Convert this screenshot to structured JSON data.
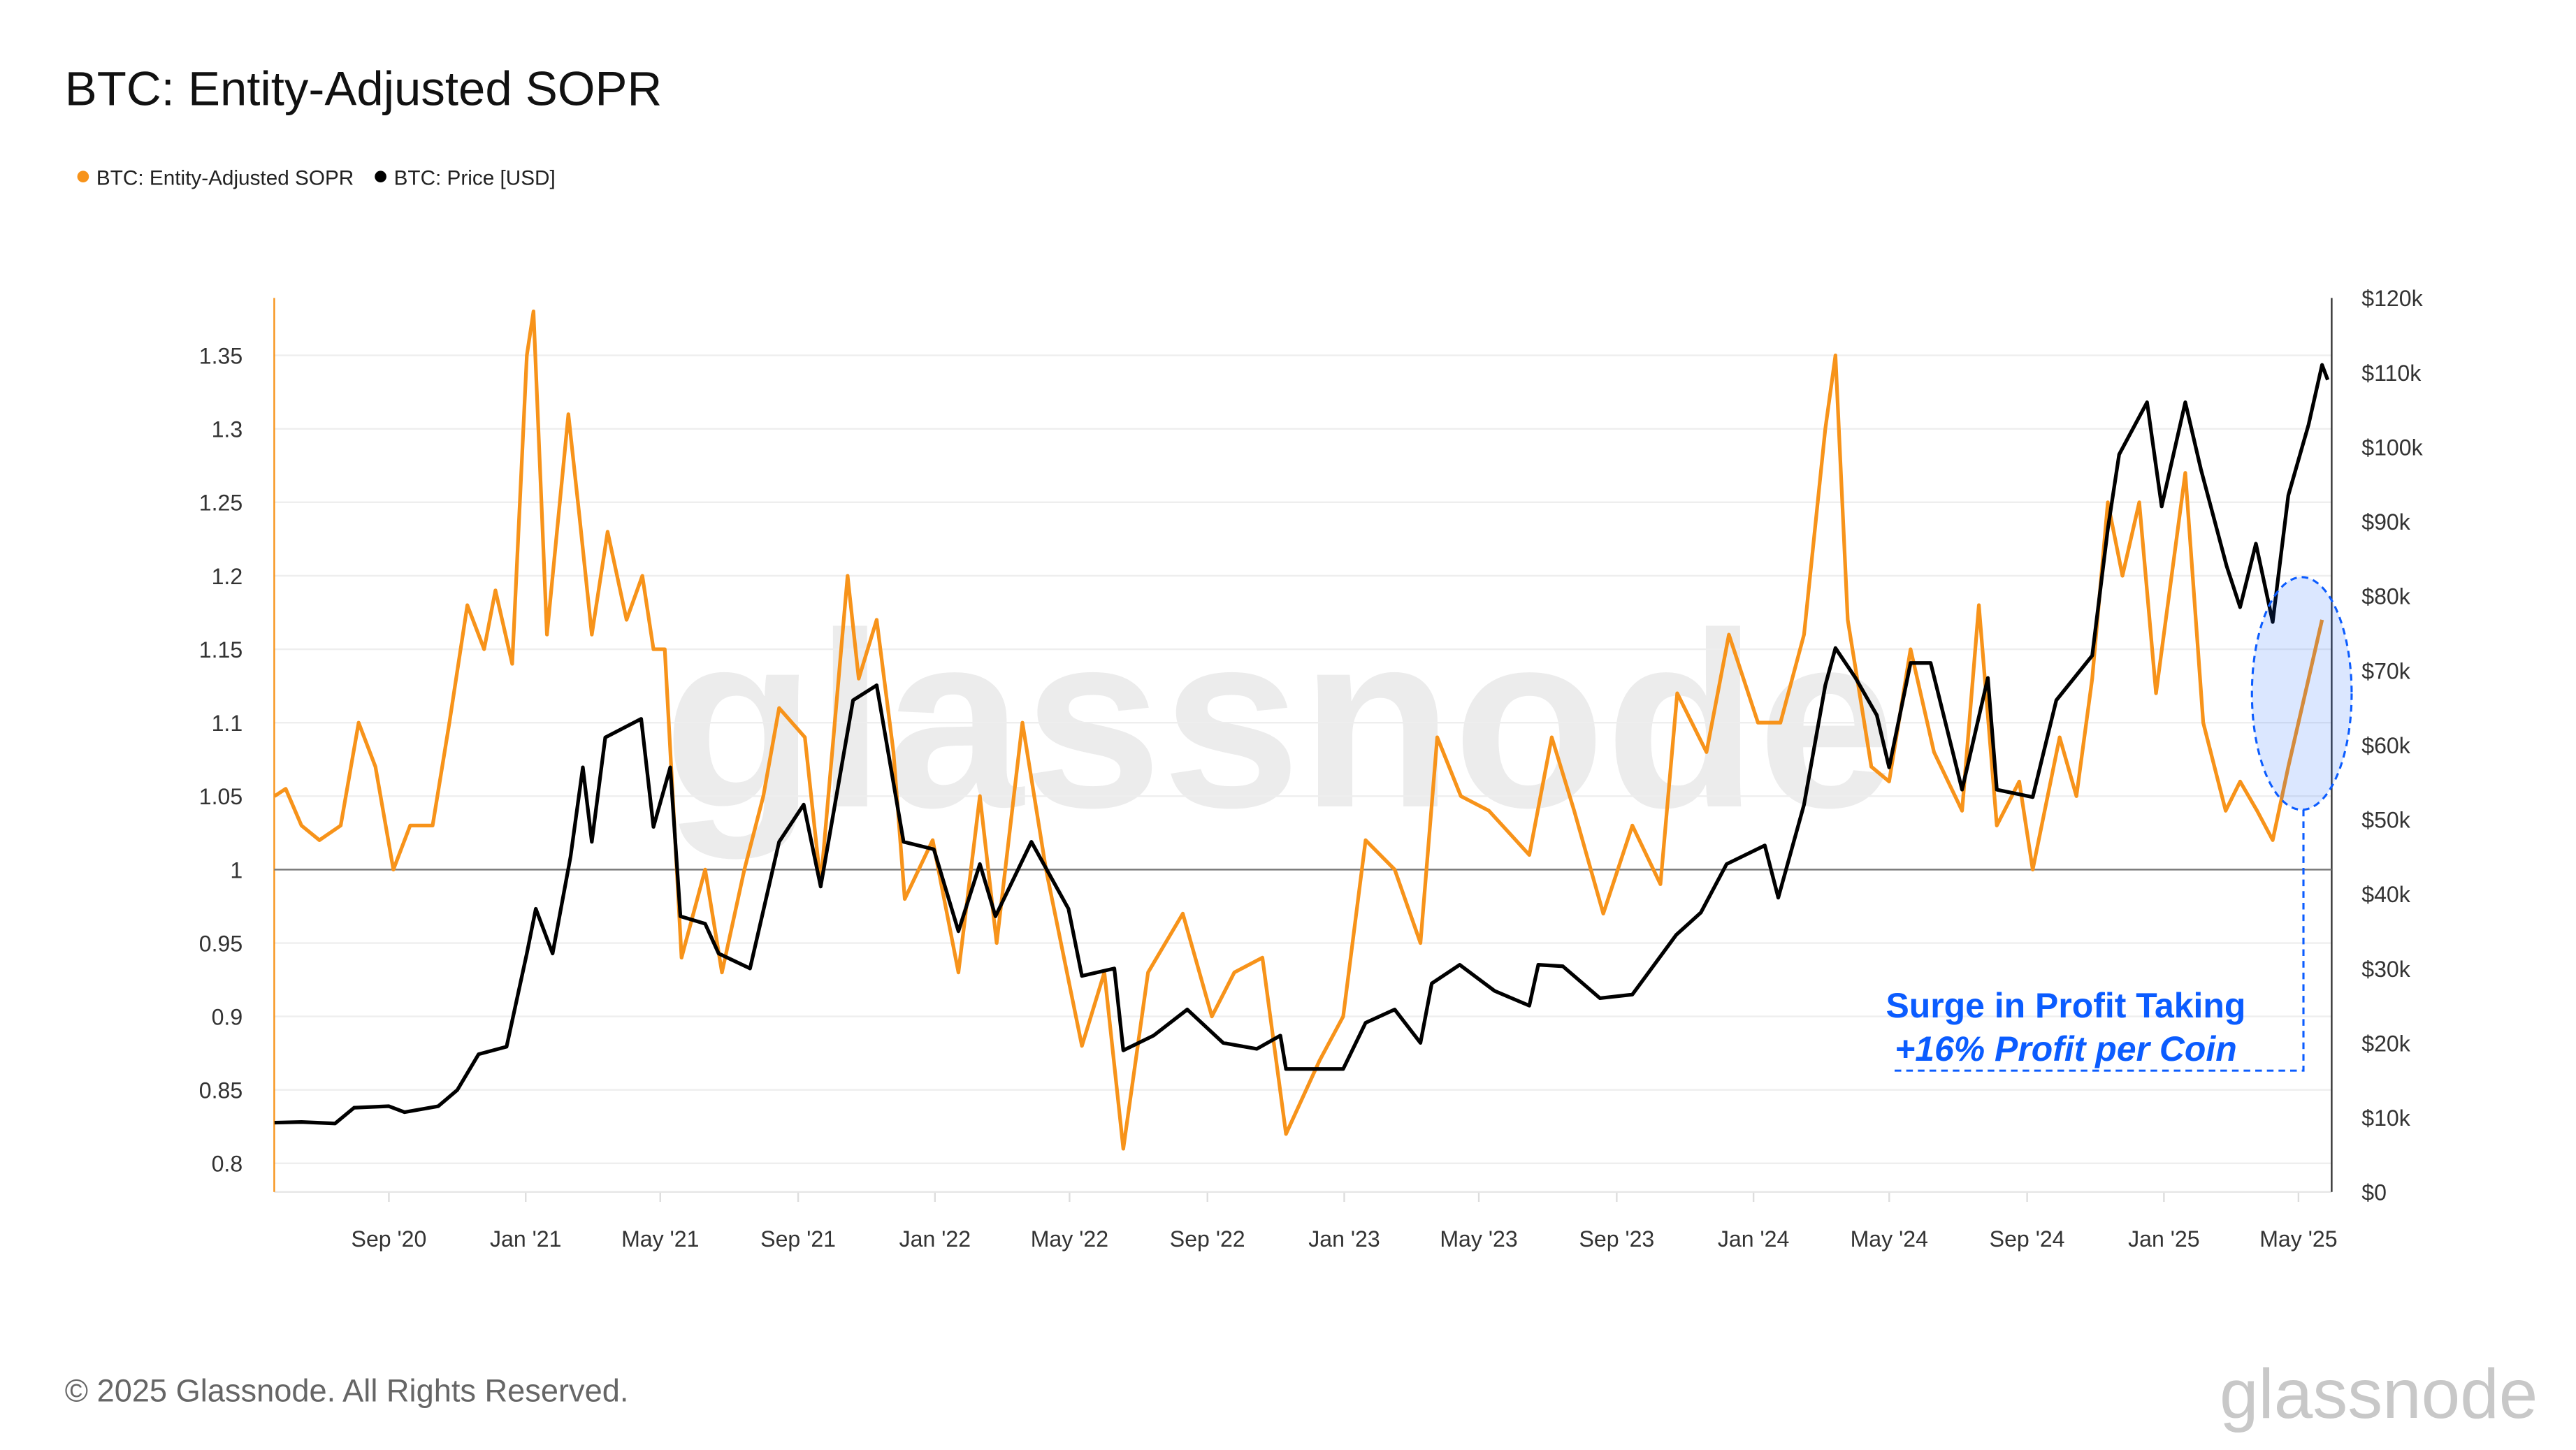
{
  "chart_data": {
    "type": "line",
    "title": "BTC: Entity-Adjusted SOPR",
    "legend_placement": "top-left",
    "grid": true,
    "series": [
      {
        "name": "BTC: Entity-Adjusted SOPR",
        "axis": "left",
        "color": "#f7931a",
        "points": [
          [
            "2020-05-22",
            1.05
          ],
          [
            "2020-06-01",
            1.055
          ],
          [
            "2020-06-15",
            1.03
          ],
          [
            "2020-07-01",
            1.02
          ],
          [
            "2020-07-20",
            1.03
          ],
          [
            "2020-08-05",
            1.1
          ],
          [
            "2020-08-20",
            1.07
          ],
          [
            "2020-09-05",
            1.0
          ],
          [
            "2020-09-20",
            1.03
          ],
          [
            "2020-10-10",
            1.03
          ],
          [
            "2020-10-25",
            1.1
          ],
          [
            "2020-11-10",
            1.18
          ],
          [
            "2020-11-25",
            1.15
          ],
          [
            "2020-12-05",
            1.19
          ],
          [
            "2020-12-20",
            1.14
          ],
          [
            "2021-01-02",
            1.35
          ],
          [
            "2021-01-08",
            1.38
          ],
          [
            "2021-01-20",
            1.16
          ],
          [
            "2021-02-08",
            1.31
          ],
          [
            "2021-02-18",
            1.24
          ],
          [
            "2021-03-01",
            1.16
          ],
          [
            "2021-03-15",
            1.23
          ],
          [
            "2021-04-01",
            1.17
          ],
          [
            "2021-04-15",
            1.2
          ],
          [
            "2021-04-25",
            1.15
          ],
          [
            "2021-05-05",
            1.15
          ],
          [
            "2021-05-20",
            0.94
          ],
          [
            "2021-06-10",
            1.0
          ],
          [
            "2021-06-25",
            0.93
          ],
          [
            "2021-07-15",
            1.0
          ],
          [
            "2021-08-01",
            1.05
          ],
          [
            "2021-08-15",
            1.11
          ],
          [
            "2021-09-07",
            1.09
          ],
          [
            "2021-09-21",
            0.99
          ],
          [
            "2021-10-15",
            1.2
          ],
          [
            "2021-10-25",
            1.13
          ],
          [
            "2021-11-10",
            1.17
          ],
          [
            "2021-11-25",
            1.08
          ],
          [
            "2021-12-05",
            0.98
          ],
          [
            "2021-12-30",
            1.02
          ],
          [
            "2022-01-22",
            0.93
          ],
          [
            "2022-02-10",
            1.05
          ],
          [
            "2022-02-25",
            0.95
          ],
          [
            "2022-03-20",
            1.1
          ],
          [
            "2022-04-10",
            1.0
          ],
          [
            "2022-05-12",
            0.88
          ],
          [
            "2022-06-01",
            0.93
          ],
          [
            "2022-06-18",
            0.81
          ],
          [
            "2022-07-10",
            0.93
          ],
          [
            "2022-08-10",
            0.97
          ],
          [
            "2022-09-05",
            0.9
          ],
          [
            "2022-09-25",
            0.93
          ],
          [
            "2022-10-20",
            0.94
          ],
          [
            "2022-11-10",
            0.82
          ],
          [
            "2022-12-10",
            0.87
          ],
          [
            "2022-12-31",
            0.9
          ],
          [
            "2023-01-20",
            1.02
          ],
          [
            "2023-02-15",
            1.0
          ],
          [
            "2023-03-10",
            0.95
          ],
          [
            "2023-03-25",
            1.09
          ],
          [
            "2023-04-15",
            1.05
          ],
          [
            "2023-05-10",
            1.04
          ],
          [
            "2023-06-15",
            1.01
          ],
          [
            "2023-07-05",
            1.09
          ],
          [
            "2023-07-25",
            1.04
          ],
          [
            "2023-08-20",
            0.97
          ],
          [
            "2023-09-15",
            1.03
          ],
          [
            "2023-10-10",
            0.99
          ],
          [
            "2023-10-25",
            1.12
          ],
          [
            "2023-11-20",
            1.08
          ],
          [
            "2023-12-10",
            1.16
          ],
          [
            "2024-01-05",
            1.1
          ],
          [
            "2024-01-25",
            1.1
          ],
          [
            "2024-02-15",
            1.16
          ],
          [
            "2024-03-05",
            1.3
          ],
          [
            "2024-03-14",
            1.35
          ],
          [
            "2024-03-25",
            1.17
          ],
          [
            "2024-04-15",
            1.07
          ],
          [
            "2024-05-01",
            1.06
          ],
          [
            "2024-05-20",
            1.15
          ],
          [
            "2024-06-10",
            1.08
          ],
          [
            "2024-07-05",
            1.04
          ],
          [
            "2024-07-20",
            1.18
          ],
          [
            "2024-08-05",
            1.03
          ],
          [
            "2024-08-25",
            1.06
          ],
          [
            "2024-09-06",
            1.0
          ],
          [
            "2024-09-30",
            1.09
          ],
          [
            "2024-10-15",
            1.05
          ],
          [
            "2024-10-29",
            1.13
          ],
          [
            "2024-11-12",
            1.25
          ],
          [
            "2024-11-25",
            1.2
          ],
          [
            "2024-12-10",
            1.25
          ],
          [
            "2024-12-25",
            1.12
          ],
          [
            "2025-01-20",
            1.27
          ],
          [
            "2025-02-05",
            1.1
          ],
          [
            "2025-02-25",
            1.04
          ],
          [
            "2025-03-10",
            1.06
          ],
          [
            "2025-03-25",
            1.04
          ],
          [
            "2025-04-08",
            1.02
          ],
          [
            "2025-04-22",
            1.07
          ],
          [
            "2025-05-10",
            1.13
          ],
          [
            "2025-05-22",
            1.17
          ]
        ]
      },
      {
        "name": "BTC: Price [USD]",
        "axis": "right",
        "color": "#000000",
        "points": [
          [
            "2020-05-22",
            9300
          ],
          [
            "2020-06-15",
            9400
          ],
          [
            "2020-07-15",
            9200
          ],
          [
            "2020-08-01",
            11300
          ],
          [
            "2020-09-01",
            11500
          ],
          [
            "2020-09-15",
            10700
          ],
          [
            "2020-10-15",
            11500
          ],
          [
            "2020-11-01",
            13700
          ],
          [
            "2020-11-20",
            18500
          ],
          [
            "2020-12-15",
            19500
          ],
          [
            "2021-01-02",
            32000
          ],
          [
            "2021-01-10",
            38000
          ],
          [
            "2021-01-25",
            32000
          ],
          [
            "2021-02-10",
            45000
          ],
          [
            "2021-02-21",
            57000
          ],
          [
            "2021-03-01",
            47000
          ],
          [
            "2021-03-13",
            61000
          ],
          [
            "2021-04-14",
            63500
          ],
          [
            "2021-04-25",
            49000
          ],
          [
            "2021-05-10",
            57000
          ],
          [
            "2021-05-19",
            37000
          ],
          [
            "2021-06-10",
            36000
          ],
          [
            "2021-06-22",
            32000
          ],
          [
            "2021-07-20",
            30000
          ],
          [
            "2021-08-15",
            47000
          ],
          [
            "2021-09-06",
            52000
          ],
          [
            "2021-09-21",
            41000
          ],
          [
            "2021-10-20",
            66000
          ],
          [
            "2021-11-10",
            68000
          ],
          [
            "2021-12-04",
            47000
          ],
          [
            "2021-12-31",
            46000
          ],
          [
            "2022-01-22",
            35000
          ],
          [
            "2022-02-10",
            44000
          ],
          [
            "2022-02-24",
            37000
          ],
          [
            "2022-03-28",
            47000
          ],
          [
            "2022-04-30",
            38000
          ],
          [
            "2022-05-12",
            29000
          ],
          [
            "2022-06-10",
            30000
          ],
          [
            "2022-06-18",
            19000
          ],
          [
            "2022-07-15",
            21000
          ],
          [
            "2022-08-14",
            24500
          ],
          [
            "2022-09-15",
            20000
          ],
          [
            "2022-10-15",
            19200
          ],
          [
            "2022-11-05",
            21000
          ],
          [
            "2022-11-10",
            16500
          ],
          [
            "2022-12-31",
            16500
          ],
          [
            "2023-01-20",
            22700
          ],
          [
            "2023-02-15",
            24500
          ],
          [
            "2023-03-10",
            20000
          ],
          [
            "2023-03-20",
            28000
          ],
          [
            "2023-04-14",
            30500
          ],
          [
            "2023-05-15",
            27000
          ],
          [
            "2023-06-15",
            25000
          ],
          [
            "2023-06-23",
            30500
          ],
          [
            "2023-07-15",
            30300
          ],
          [
            "2023-08-17",
            26000
          ],
          [
            "2023-09-15",
            26500
          ],
          [
            "2023-10-24",
            34500
          ],
          [
            "2023-11-15",
            37500
          ],
          [
            "2023-12-08",
            44000
          ],
          [
            "2024-01-11",
            46500
          ],
          [
            "2024-01-23",
            39500
          ],
          [
            "2024-02-15",
            52000
          ],
          [
            "2024-03-05",
            68000
          ],
          [
            "2024-03-14",
            73000
          ],
          [
            "2024-04-01",
            69000
          ],
          [
            "2024-04-20",
            64000
          ],
          [
            "2024-05-01",
            57000
          ],
          [
            "2024-05-20",
            71000
          ],
          [
            "2024-06-07",
            71000
          ],
          [
            "2024-07-05",
            54000
          ],
          [
            "2024-07-28",
            69000
          ],
          [
            "2024-08-05",
            54000
          ],
          [
            "2024-09-06",
            53000
          ],
          [
            "2024-09-27",
            66000
          ],
          [
            "2024-10-29",
            72000
          ],
          [
            "2024-11-12",
            89000
          ],
          [
            "2024-11-22",
            99000
          ],
          [
            "2024-12-17",
            106000
          ],
          [
            "2024-12-30",
            92000
          ],
          [
            "2025-01-20",
            106000
          ],
          [
            "2025-02-03",
            97000
          ],
          [
            "2025-02-26",
            84000
          ],
          [
            "2025-03-10",
            78500
          ],
          [
            "2025-03-24",
            87000
          ],
          [
            "2025-04-08",
            76500
          ],
          [
            "2025-04-22",
            93500
          ],
          [
            "2025-05-10",
            103000
          ],
          [
            "2025-05-22",
            111000
          ],
          [
            "2025-05-27",
            109000
          ]
        ]
      }
    ],
    "x_ticks": [
      [
        "2020-09-01",
        "Sep '20"
      ],
      [
        "2021-01-01",
        "Jan '21"
      ],
      [
        "2021-05-01",
        "May '21"
      ],
      [
        "2021-09-01",
        "Sep '21"
      ],
      [
        "2022-01-01",
        "Jan '22"
      ],
      [
        "2022-05-01",
        "May '22"
      ],
      [
        "2022-09-01",
        "Sep '22"
      ],
      [
        "2023-01-01",
        "Jan '23"
      ],
      [
        "2023-05-01",
        "May '23"
      ],
      [
        "2023-09-01",
        "Sep '23"
      ],
      [
        "2024-01-01",
        "Jan '24"
      ],
      [
        "2024-05-01",
        "May '24"
      ],
      [
        "2024-09-01",
        "Sep '24"
      ],
      [
        "2025-01-01",
        "Jan '25"
      ],
      [
        "2025-05-01",
        "May '25"
      ]
    ],
    "y_left": {
      "ticks": [
        "0.8",
        "0.85",
        "0.9",
        "0.95",
        "1",
        "1.05",
        "1.1",
        "1.15",
        "1.2",
        "1.25",
        "1.3",
        "1.35"
      ],
      "reference_line": 1
    },
    "y_right": {
      "range": [
        0,
        120000
      ],
      "ticks": [
        "$0",
        "$10k",
        "$20k",
        "$30k",
        "$40k",
        "$50k",
        "$60k",
        "$70k",
        "$80k",
        "$90k",
        "$100k",
        "$110k",
        "$120k"
      ]
    },
    "annotation": {
      "line1": "Surge in Profit Taking",
      "line2": "+16% Profit per Coin",
      "color": "#0b5cff"
    }
  },
  "watermark": "glassnode",
  "footer": {
    "copyright": "© 2025 Glassnode. All Rights Reserved.",
    "logo": "glassnode"
  }
}
